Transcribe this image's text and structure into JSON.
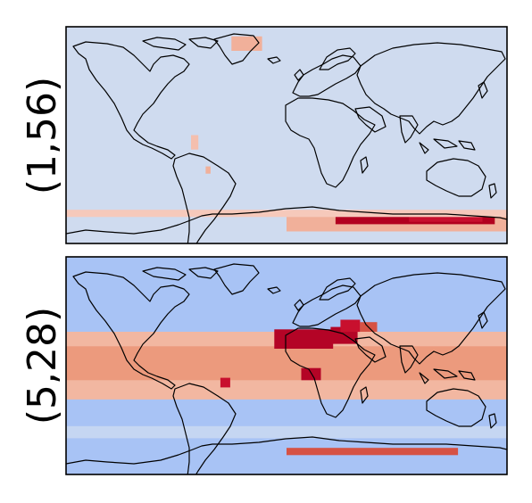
{
  "figure": {
    "panels": [
      {
        "label": "(1,56)",
        "icon": "world-coastline-map",
        "background_color": "#cfdbef",
        "hotspots": [
          {
            "lon": 0,
            "lat": -80,
            "w": 360,
            "h": 14,
            "color": "#f1b09a"
          },
          {
            "lon": 40,
            "lat": -74,
            "w": 130,
            "h": 8,
            "color": "#b2001f"
          },
          {
            "lon": 100,
            "lat": -72,
            "w": 60,
            "h": 6,
            "color": "#c8102e"
          },
          {
            "lon": -45,
            "lat": 70,
            "w": 25,
            "h": 12,
            "color": "#f1b09a"
          },
          {
            "lon": -78,
            "lat": -12,
            "w": 6,
            "h": 12,
            "color": "#f4bfae"
          },
          {
            "lon": -66,
            "lat": -32,
            "w": 4,
            "h": 6,
            "color": "#f1b09a"
          },
          {
            "lon": -180,
            "lat": -68,
            "w": 360,
            "h": 6,
            "color": "#f6c9bb"
          }
        ]
      },
      {
        "label": "(5,28)",
        "icon": "world-coastline-map",
        "background_color": "#a8c3f5",
        "hotspots": [
          {
            "lon": -180,
            "lat": -28,
            "w": 360,
            "h": 56,
            "color": "#f2b7a1"
          },
          {
            "lon": -180,
            "lat": -12,
            "w": 360,
            "h": 28,
            "color": "#ec9a7d"
          },
          {
            "lon": -10,
            "lat": 14,
            "w": 48,
            "h": 16,
            "color": "#b40426"
          },
          {
            "lon": 36,
            "lat": 18,
            "w": 22,
            "h": 14,
            "color": "#b40426"
          },
          {
            "lon": 44,
            "lat": 28,
            "w": 16,
            "h": 10,
            "color": "#c8102e"
          },
          {
            "lon": 12,
            "lat": -12,
            "w": 16,
            "h": 10,
            "color": "#b40426"
          },
          {
            "lon": -54,
            "lat": -18,
            "w": 8,
            "h": 8,
            "color": "#c8102e"
          },
          {
            "lon": 60,
            "lat": 28,
            "w": 14,
            "h": 8,
            "color": "#d65244"
          },
          {
            "lon": 0,
            "lat": -74,
            "w": 140,
            "h": 6,
            "color": "#d65244"
          },
          {
            "lon": -180,
            "lat": -60,
            "w": 360,
            "h": 10,
            "color": "#c5d6f2"
          }
        ]
      }
    ]
  }
}
